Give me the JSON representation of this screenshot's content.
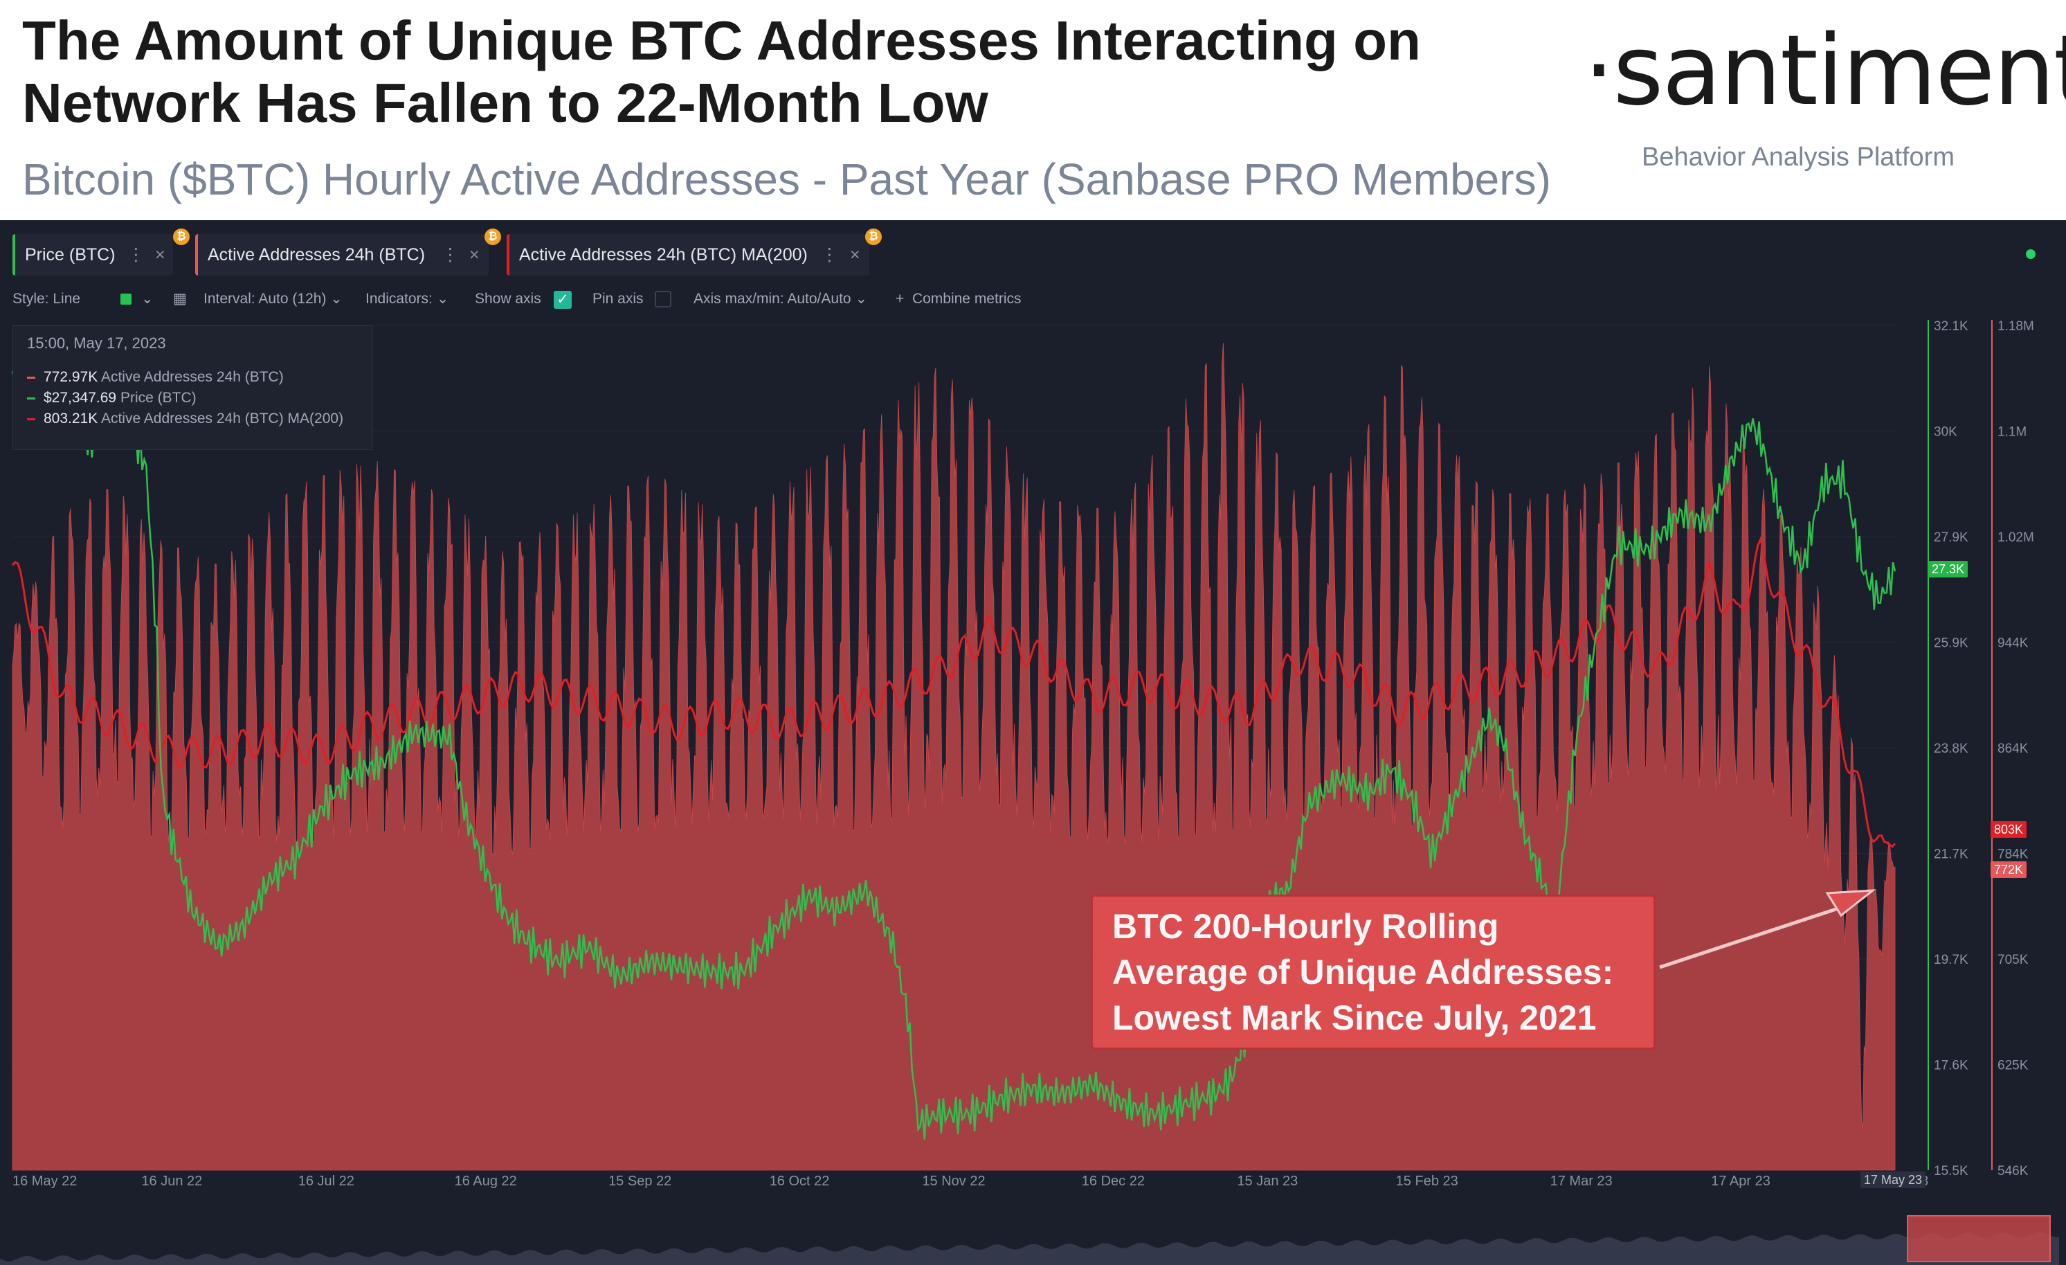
{
  "header": {
    "title": "The Amount of Unique BTC Addresses Interacting on Network Has Fallen to 22-Month Low",
    "subtitle": "Bitcoin ($BTC) Hourly Active Addresses - Past Year (Sanbase PRO Members)",
    "brand": "·santiment·",
    "brand_tagline": "Behavior Analysis Platform"
  },
  "tabs": [
    {
      "label": "Price (BTC)",
      "color": "#2fbf4f"
    },
    {
      "label": "Active Addresses 24h (BTC)",
      "color": "#e8585b"
    },
    {
      "label": "Active Addresses 24h (BTC) MA(200)",
      "color": "#e01f26"
    }
  ],
  "toolbar": {
    "style": "Style: Line",
    "interval": "Interval: Auto (12h)",
    "indicators": "Indicators:",
    "show_axis": "Show axis",
    "pin_axis": "Pin axis",
    "axis_maxmin": "Axis max/min: Auto/Auto",
    "combine": "Combine metrics"
  },
  "tooltip": {
    "date": "15:00, May 17, 2023",
    "rows": [
      {
        "value": "772.97K",
        "label": "Active Addresses 24h (BTC)",
        "color": "#e8585b"
      },
      {
        "value": "$27,347.69",
        "label": "Price (BTC)",
        "color": "#2fbf4f"
      },
      {
        "value": "803.21K",
        "label": "Active Addresses 24h (BTC) MA(200)",
        "color": "#e01f26"
      }
    ]
  },
  "annotation": {
    "lines": [
      "BTC 200-Hourly Rolling",
      "Average of Unique Addresses:",
      "Lowest Mark Since July, 2021"
    ]
  },
  "badges": {
    "price": "27.3K",
    "ma": "803K",
    "active": "772K",
    "date": "17 May 23"
  },
  "colors": {
    "price": "#2fbf4f",
    "active": "#e8585b",
    "ma": "#e01f26",
    "background": "#1b1e2b"
  },
  "chart_data": {
    "type": "line",
    "x_ticks": [
      "16 May 22",
      "16 Jun 22",
      "16 Jul 22",
      "16 Aug 22",
      "15 Sep 22",
      "16 Oct 22",
      "15 Nov 22",
      "16 Dec 22",
      "15 Jan 23",
      "15 Feb 23",
      "17 Mar 23",
      "17 Apr 23",
      "23"
    ],
    "price_axis_ticks": [
      "32.1K",
      "30K",
      "27.9K",
      "25.9K",
      "23.8K",
      "21.7K",
      "19.7K",
      "17.6K",
      "15.5K"
    ],
    "active_axis_ticks": [
      "1.18M",
      "1.1M",
      "1.02M",
      "944K",
      "864K",
      "784K",
      "705K",
      "625K",
      "546K"
    ],
    "price_ylim": [
      15.5,
      32.1
    ],
    "active_ylim": [
      546,
      1180
    ],
    "x_range_days": [
      0,
      366
    ],
    "series": [
      {
        "name": "Price (BTC)",
        "unit": "K USD",
        "points": [
          [
            0,
            31.2
          ],
          [
            8,
            30.5
          ],
          [
            15,
            29.8
          ],
          [
            22,
            30.4
          ],
          [
            26,
            29.3
          ],
          [
            28,
            26.0
          ],
          [
            29,
            23.0
          ],
          [
            31,
            22.0
          ],
          [
            35,
            20.6
          ],
          [
            40,
            19.9
          ],
          [
            45,
            20.3
          ],
          [
            50,
            21.2
          ],
          [
            55,
            21.6
          ],
          [
            60,
            22.6
          ],
          [
            66,
            23.3
          ],
          [
            72,
            23.5
          ],
          [
            78,
            24.1
          ],
          [
            85,
            24.0
          ],
          [
            88,
            22.5
          ],
          [
            92,
            21.4
          ],
          [
            96,
            20.5
          ],
          [
            100,
            20.0
          ],
          [
            106,
            19.6
          ],
          [
            112,
            19.9
          ],
          [
            118,
            19.3
          ],
          [
            124,
            19.6
          ],
          [
            130,
            19.5
          ],
          [
            136,
            19.4
          ],
          [
            142,
            19.4
          ],
          [
            148,
            20.2
          ],
          [
            155,
            20.9
          ],
          [
            160,
            20.6
          ],
          [
            166,
            21.0
          ],
          [
            171,
            20.0
          ],
          [
            174,
            18.6
          ],
          [
            176,
            16.4
          ],
          [
            180,
            16.6
          ],
          [
            186,
            16.6
          ],
          [
            192,
            16.9
          ],
          [
            198,
            17.1
          ],
          [
            204,
            17.0
          ],
          [
            210,
            17.2
          ],
          [
            216,
            16.8
          ],
          [
            222,
            16.6
          ],
          [
            228,
            16.8
          ],
          [
            234,
            17.0
          ],
          [
            237,
            17.3
          ],
          [
            240,
            18.2
          ],
          [
            244,
            20.8
          ],
          [
            248,
            21.0
          ],
          [
            252,
            22.7
          ],
          [
            258,
            23.2
          ],
          [
            264,
            22.9
          ],
          [
            268,
            23.4
          ],
          [
            272,
            22.8
          ],
          [
            276,
            21.7
          ],
          [
            282,
            23.2
          ],
          [
            287,
            24.4
          ],
          [
            290,
            23.9
          ],
          [
            294,
            22.1
          ],
          [
            297,
            21.3
          ],
          [
            300,
            20.4
          ],
          [
            304,
            24.0
          ],
          [
            308,
            26.0
          ],
          [
            312,
            27.8
          ],
          [
            318,
            27.7
          ],
          [
            324,
            28.4
          ],
          [
            330,
            28.2
          ],
          [
            334,
            29.4
          ],
          [
            338,
            30.2
          ],
          [
            340,
            29.8
          ],
          [
            344,
            28.3
          ],
          [
            348,
            27.3
          ],
          [
            352,
            29.0
          ],
          [
            356,
            29.1
          ],
          [
            360,
            27.2
          ],
          [
            363,
            26.7
          ],
          [
            366,
            27.3
          ]
        ]
      },
      {
        "name": "Active Addresses 24h (BTC) MA(200)",
        "unit": "K",
        "points": [
          [
            0,
            1000
          ],
          [
            10,
            900
          ],
          [
            20,
            880
          ],
          [
            30,
            860
          ],
          [
            40,
            860
          ],
          [
            50,
            870
          ],
          [
            60,
            860
          ],
          [
            70,
            880
          ],
          [
            80,
            890
          ],
          [
            90,
            900
          ],
          [
            100,
            910
          ],
          [
            110,
            900
          ],
          [
            120,
            890
          ],
          [
            130,
            880
          ],
          [
            140,
            890
          ],
          [
            150,
            880
          ],
          [
            160,
            890
          ],
          [
            170,
            900
          ],
          [
            180,
            920
          ],
          [
            190,
            950
          ],
          [
            200,
            930
          ],
          [
            210,
            900
          ],
          [
            220,
            910
          ],
          [
            230,
            900
          ],
          [
            240,
            890
          ],
          [
            250,
            930
          ],
          [
            260,
            920
          ],
          [
            270,
            890
          ],
          [
            280,
            905
          ],
          [
            290,
            915
          ],
          [
            300,
            930
          ],
          [
            310,
            960
          ],
          [
            320,
            920
          ],
          [
            330,
            990
          ],
          [
            335,
            960
          ],
          [
            340,
            1010
          ],
          [
            345,
            960
          ],
          [
            350,
            920
          ],
          [
            355,
            880
          ],
          [
            358,
            840
          ],
          [
            362,
            800
          ],
          [
            364,
            780
          ],
          [
            366,
            803
          ]
        ]
      },
      {
        "name": "Active Addresses 24h (BTC)",
        "unit": "K",
        "envelope_points": [
          [
            0,
            950
          ],
          [
            10,
            1040
          ],
          [
            20,
            1060
          ],
          [
            28,
            1020
          ],
          [
            40,
            1000
          ],
          [
            55,
            1060
          ],
          [
            70,
            1080
          ],
          [
            85,
            1050
          ],
          [
            95,
            1010
          ],
          [
            110,
            1040
          ],
          [
            125,
            1070
          ],
          [
            140,
            1030
          ],
          [
            150,
            1060
          ],
          [
            165,
            1100
          ],
          [
            180,
            1150
          ],
          [
            188,
            1120
          ],
          [
            200,
            1050
          ],
          [
            215,
            1040
          ],
          [
            235,
            1170
          ],
          [
            250,
            1050
          ],
          [
            260,
            1080
          ],
          [
            270,
            1150
          ],
          [
            285,
            1060
          ],
          [
            295,
            1050
          ],
          [
            305,
            1060
          ],
          [
            318,
            1090
          ],
          [
            330,
            1150
          ],
          [
            340,
            1060
          ],
          [
            350,
            1000
          ],
          [
            355,
            920
          ],
          [
            358,
            860
          ],
          [
            360,
            840
          ],
          [
            362,
            780
          ],
          [
            364,
            800
          ],
          [
            366,
            780
          ]
        ],
        "trough_points": [
          [
            0,
            900
          ],
          [
            10,
            800
          ],
          [
            20,
            840
          ],
          [
            28,
            790
          ],
          [
            40,
            800
          ],
          [
            55,
            790
          ],
          [
            70,
            800
          ],
          [
            85,
            800
          ],
          [
            95,
            780
          ],
          [
            110,
            800
          ],
          [
            125,
            800
          ],
          [
            140,
            810
          ],
          [
            150,
            810
          ],
          [
            165,
            800
          ],
          [
            180,
            820
          ],
          [
            188,
            830
          ],
          [
            200,
            800
          ],
          [
            215,
            790
          ],
          [
            235,
            800
          ],
          [
            250,
            810
          ],
          [
            260,
            820
          ],
          [
            270,
            800
          ],
          [
            285,
            830
          ],
          [
            295,
            810
          ],
          [
            305,
            820
          ],
          [
            318,
            850
          ],
          [
            330,
            830
          ],
          [
            340,
            840
          ],
          [
            350,
            790
          ],
          [
            355,
            760
          ],
          [
            358,
            650
          ],
          [
            360,
            560
          ],
          [
            362,
            720
          ],
          [
            364,
            700
          ],
          [
            366,
            772
          ]
        ]
      }
    ]
  }
}
